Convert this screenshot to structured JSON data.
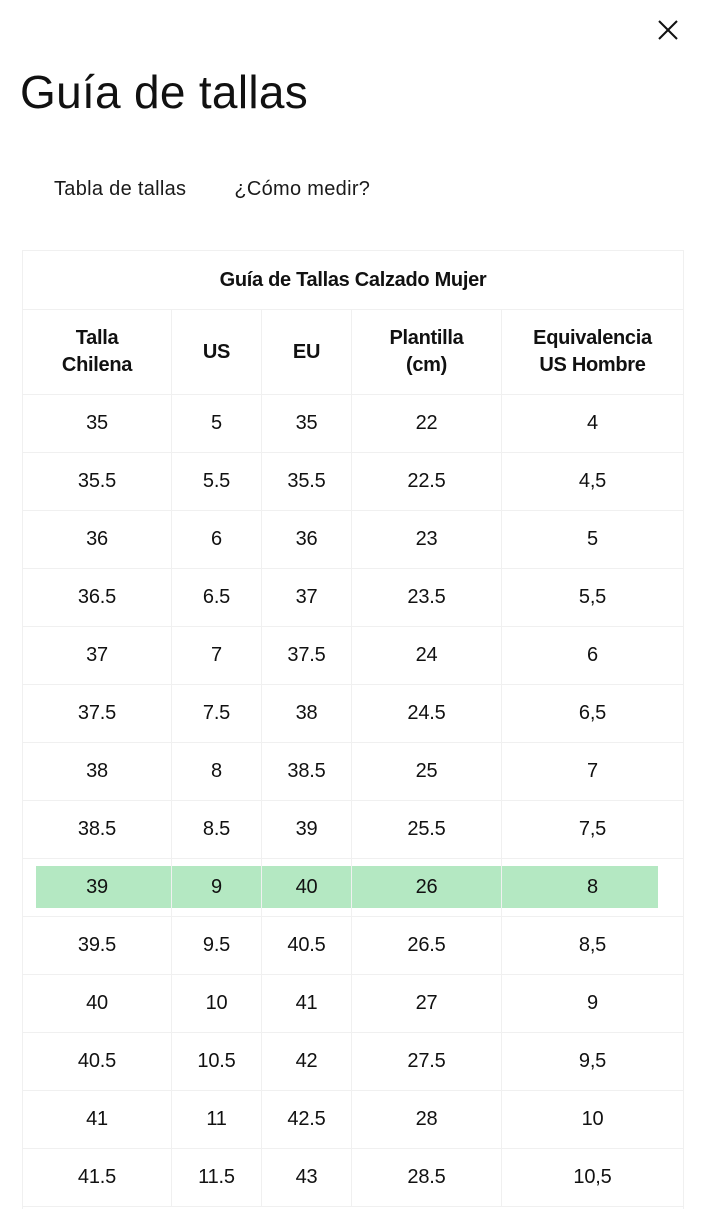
{
  "modal": {
    "title": "Guía de tallas",
    "close_icon": "close-icon"
  },
  "tabs": [
    {
      "label": "Tabla de tallas"
    },
    {
      "label": "¿Cómo medir?"
    }
  ],
  "table": {
    "caption": "Guía de Tallas Calzado Mujer",
    "headers": [
      "Talla\nChilena",
      "US",
      "EU",
      "Plantilla\n(cm)",
      "Equivalencia\nUS Hombre"
    ],
    "highlight_color": "#b4e8c2",
    "highlighted_row": 8,
    "rows": [
      [
        "35",
        "5",
        "35",
        "22",
        "4"
      ],
      [
        "35.5",
        "5.5",
        "35.5",
        "22.5",
        "4,5"
      ],
      [
        "36",
        "6",
        "36",
        "23",
        "5"
      ],
      [
        "36.5",
        "6.5",
        "37",
        "23.5",
        "5,5"
      ],
      [
        "37",
        "7",
        "37.5",
        "24",
        "6"
      ],
      [
        "37.5",
        "7.5",
        "38",
        "24.5",
        "6,5"
      ],
      [
        "38",
        "8",
        "38.5",
        "25",
        "7"
      ],
      [
        "38.5",
        "8.5",
        "39",
        "25.5",
        "7,5"
      ],
      [
        "39",
        "9",
        "40",
        "26",
        "8"
      ],
      [
        "39.5",
        "9.5",
        "40.5",
        "26.5",
        "8,5"
      ],
      [
        "40",
        "10",
        "41",
        "27",
        "9"
      ],
      [
        "40.5",
        "10.5",
        "42",
        "27.5",
        "9,5"
      ],
      [
        "41",
        "11",
        "42.5",
        "28",
        "10"
      ],
      [
        "41.5",
        "11.5",
        "43",
        "28.5",
        "10,5"
      ]
    ]
  }
}
